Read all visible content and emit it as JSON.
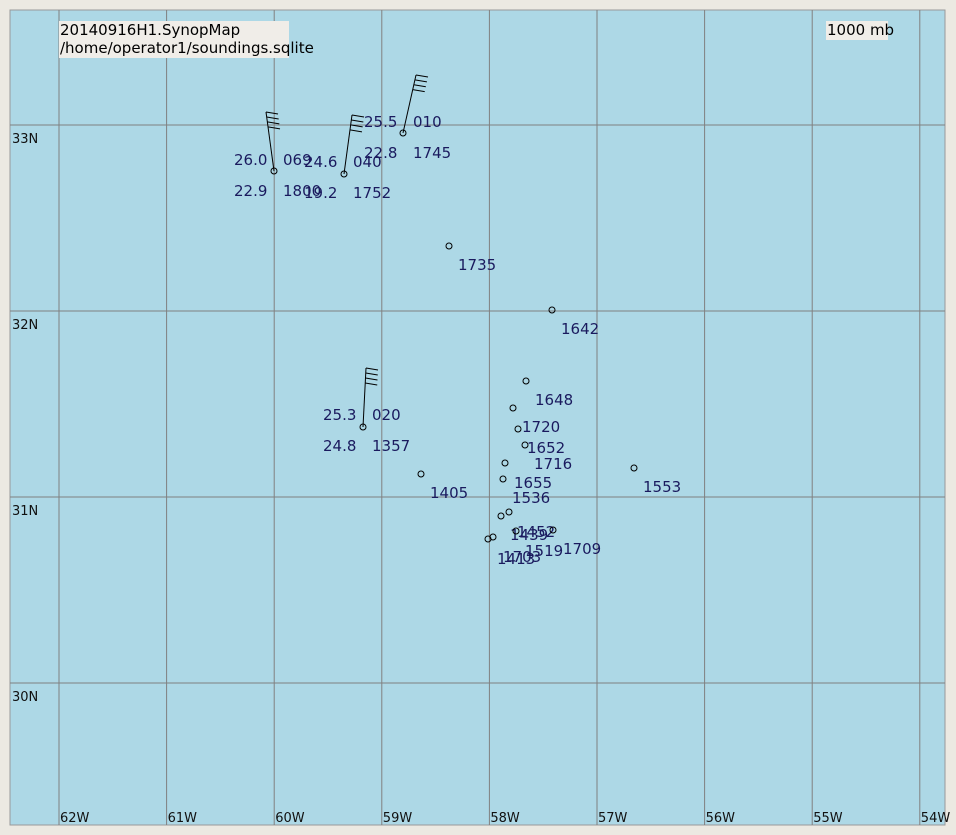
{
  "header": {
    "title": "20140916H1.SynopMap",
    "source": "/home/operator1/soundings.sqlite",
    "level": "1000 mb"
  },
  "lat_labels": [
    "33N",
    "32N",
    "31N",
    "30N"
  ],
  "lon_labels": [
    "62W",
    "61W",
    "60W",
    "59W",
    "58W",
    "57W",
    "56W",
    "55W",
    "54W"
  ],
  "stations": [
    {
      "time": "1800",
      "temp": "26.0",
      "wind": "069",
      "dew": "22.9"
    },
    {
      "time": "1752",
      "temp": "24.6",
      "wind": "040",
      "dew": "19.2"
    },
    {
      "time": "1745",
      "temp": "25.5",
      "wind": "010",
      "dew": "22.8"
    },
    {
      "time": "1735"
    },
    {
      "time": "1642"
    },
    {
      "time": "1648"
    },
    {
      "time": "1357",
      "temp": "25.3",
      "wind": "020",
      "dew": "24.8"
    },
    {
      "time": "1720"
    },
    {
      "time": "1652"
    },
    {
      "time": "1716"
    },
    {
      "time": "1405"
    },
    {
      "time": "1655"
    },
    {
      "time": "1553"
    },
    {
      "time": "1536"
    },
    {
      "time": "1452"
    },
    {
      "time": "1439"
    },
    {
      "time": "1709"
    },
    {
      "time": "1519"
    },
    {
      "time": "1413"
    },
    {
      "time": "1703"
    }
  ]
}
